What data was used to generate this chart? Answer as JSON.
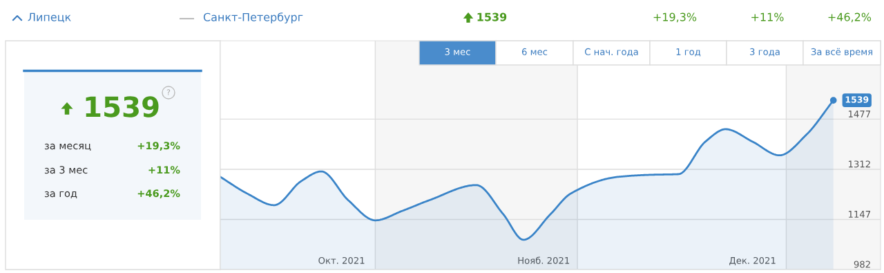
{
  "chart_data": [
    {
      "type": "other",
      "annotations": [
        "Липецк",
        "Санкт-Петербург",
        "1539",
        "+19,3%",
        "+11%",
        "+46,2%"
      ]
    },
    {
      "type": "other",
      "annotations": [
        "1539",
        "?",
        "за месяц",
        "+19,3%",
        "за 3 мес",
        "+11%",
        "за год",
        "+46,2%"
      ]
    },
    {
      "type": "other",
      "annotations": [
        "3 мес",
        "6 мес",
        "С нач. года",
        "1 год",
        "3 года",
        "За всё время"
      ]
    },
    {
      "type": "area",
      "color": "#3a84c8",
      "x": [
        "2021-10-09",
        "2021-10-13",
        "2021-10-17",
        "2021-10-21",
        "2021-10-24",
        "2021-10-28",
        "2021-11-01",
        "2021-11-05",
        "2021-11-09",
        "2021-11-16",
        "2021-11-20",
        "2021-11-23",
        "2021-11-27",
        "2021-11-30",
        "2021-12-07",
        "2021-12-12",
        "2021-12-16",
        "2021-12-20",
        "2021-12-23",
        "2021-12-27",
        "2021-12-31",
        "2022-01-04",
        "2022-01-08"
      ],
      "values": [
        1287,
        1232,
        1194,
        1273,
        1305,
        1210,
        1144,
        1175,
        1210,
        1260,
        1164,
        1080,
        1164,
        1232,
        1287,
        1294,
        1296,
        1403,
        1444,
        1403,
        1358,
        1426,
        1539
      ],
      "xlim": [
        "2021-10-09",
        "2022-01-15"
      ],
      "xticks": [
        {
          "value": "2021-10-27",
          "label": "Окт. 2021"
        },
        {
          "value": "2021-11-26",
          "label": "Нояб. 2021"
        },
        {
          "value": "2021-12-27",
          "label": "Дек. 2021"
        }
      ],
      "ylim": [
        982,
        1735
      ],
      "yticks": [
        982,
        1147,
        1312,
        1477
      ],
      "grid": "y",
      "ref_lines": [
        {
          "axis": "x",
          "value": "2021-11-01",
          "color": "#dddddd"
        },
        {
          "axis": "x",
          "value": "2021-12-01",
          "color": "#dddddd"
        },
        {
          "axis": "x",
          "value": "2022-01-01",
          "color": "#dddddd"
        }
      ],
      "bands": [
        {
          "axis": "x",
          "from": "2021-11-01",
          "to": "2021-12-01",
          "color": "#f6f6f6"
        },
        {
          "axis": "x",
          "from": "2022-01-01",
          "to": "2022-01-15",
          "color": "#f6f6f6"
        }
      ],
      "annotations": [
        {
          "text": "1539",
          "x": "2022-01-08",
          "y": 1539
        }
      ]
    }
  ]
}
